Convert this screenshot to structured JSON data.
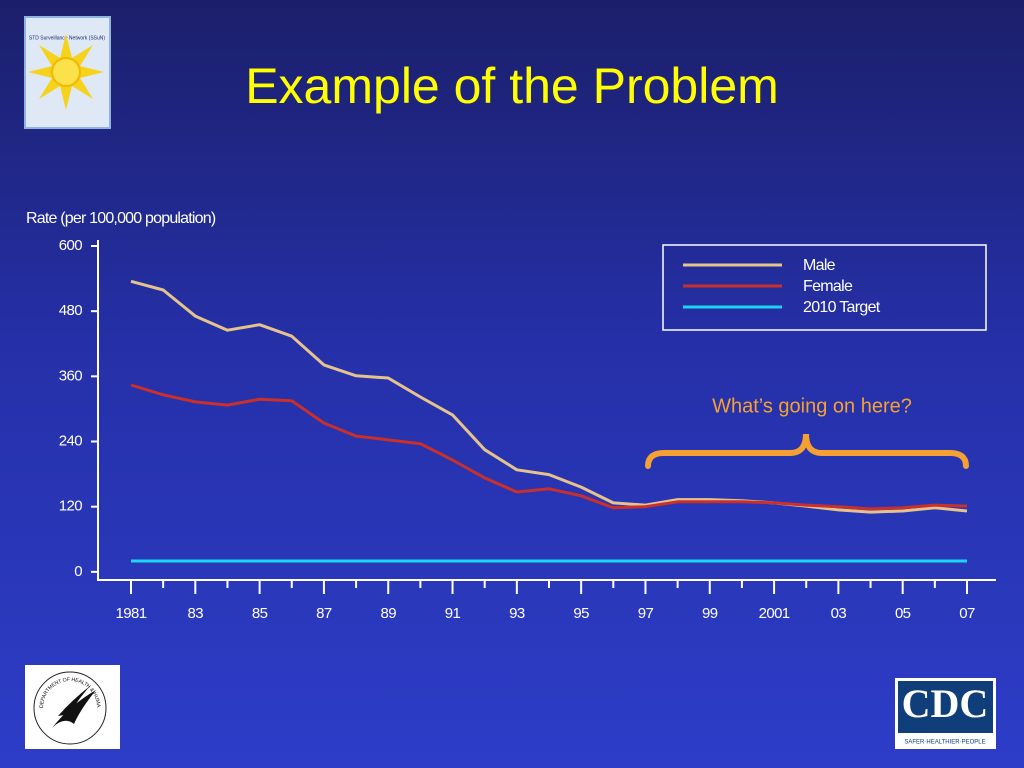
{
  "chart_data": {
    "type": "line",
    "title": "Example of the Problem",
    "y_label": "Rate (per 100,000 population)",
    "annotation": "What’s going on here?",
    "categories": [
      "1981",
      null,
      "83",
      null,
      "85",
      null,
      "87",
      null,
      "89",
      null,
      "91",
      null,
      "93",
      null,
      "95",
      null,
      "97",
      null,
      "99",
      null,
      "2001",
      null,
      "03",
      null,
      "05",
      null,
      "07"
    ],
    "series": [
      {
        "name": "Male",
        "color": "#e6c38c",
        "values": [
          535,
          519,
          471,
          445,
          455,
          434,
          381,
          361,
          357,
          322,
          289,
          225,
          188,
          179,
          156,
          127,
          123,
          133,
          133,
          131,
          127,
          121,
          114,
          110,
          112,
          118,
          112
        ]
      },
      {
        "name": "Female",
        "color": "#c9302c",
        "values": [
          344,
          326,
          313,
          307,
          318,
          315,
          274,
          250,
          243,
          236,
          206,
          173,
          147,
          153,
          140,
          118,
          120,
          129,
          129,
          129,
          127,
          123,
          120,
          116,
          118,
          123,
          121
        ]
      },
      {
        "name": "2010 Target",
        "color": "#1ad6f2",
        "values": [
          20,
          20,
          20,
          20,
          20,
          20,
          20,
          20,
          20,
          20,
          20,
          20,
          20,
          20,
          20,
          20,
          20,
          20,
          20,
          20,
          20,
          20,
          20,
          20,
          20,
          20,
          20
        ]
      }
    ],
    "ylim": [
      -15,
      600
    ],
    "yticks": [
      0,
      120,
      240,
      360,
      480,
      600
    ],
    "legend": "upper right",
    "grid": false
  },
  "logos": {
    "ssun": "STD Surveillance Network (SSuN)",
    "cdc": "CDC",
    "cdc_tagline": "SAFER·HEALTHIER·PEOPLE",
    "hhs": "DEPARTMENT OF HEALTH & HUMAN SERVICES·USA"
  }
}
